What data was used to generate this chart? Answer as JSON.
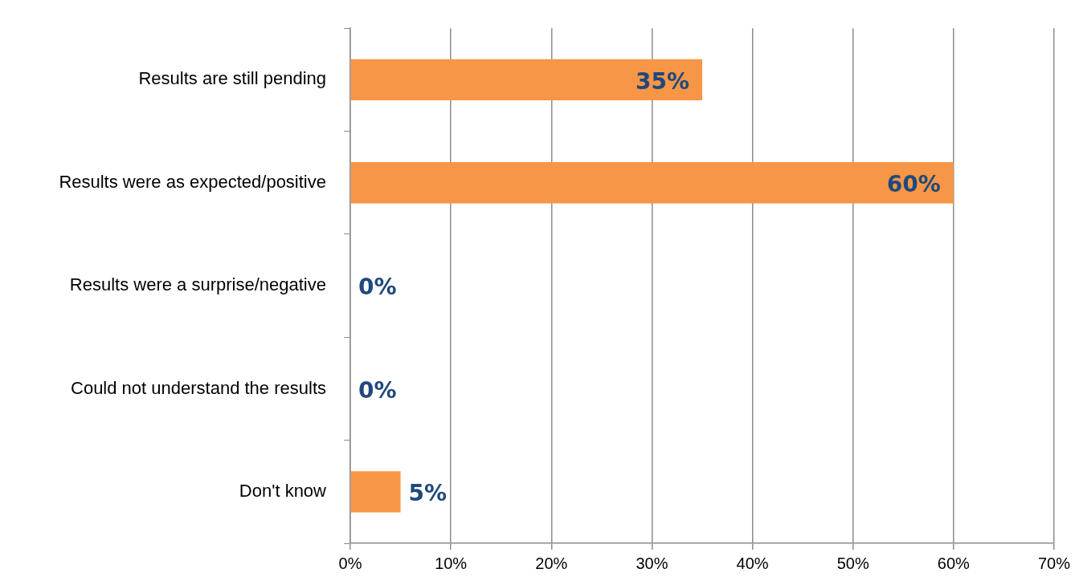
{
  "chart_data": {
    "type": "bar",
    "orientation": "horizontal",
    "categories": [
      "Results are still pending",
      "Results were as expected/positive",
      "Results were a surprise/negative",
      "Could not understand the results",
      "Don't know"
    ],
    "values": [
      35,
      60,
      0,
      0,
      5
    ],
    "value_labels": [
      "35%",
      "60%",
      "0%",
      "0%",
      "5%"
    ],
    "color": "#f79646",
    "xlim": [
      0,
      70
    ],
    "xticks": [
      {
        "value": 0,
        "label": "0%"
      },
      {
        "value": 10,
        "label": "10%"
      },
      {
        "value": 20,
        "label": "20%"
      },
      {
        "value": 30,
        "label": "30%"
      },
      {
        "value": 40,
        "label": "40%"
      },
      {
        "value": 50,
        "label": "50%"
      },
      {
        "value": 60,
        "label": "60%"
      },
      {
        "value": 70,
        "label": "70%"
      }
    ],
    "grid": "x",
    "legend": false
  }
}
